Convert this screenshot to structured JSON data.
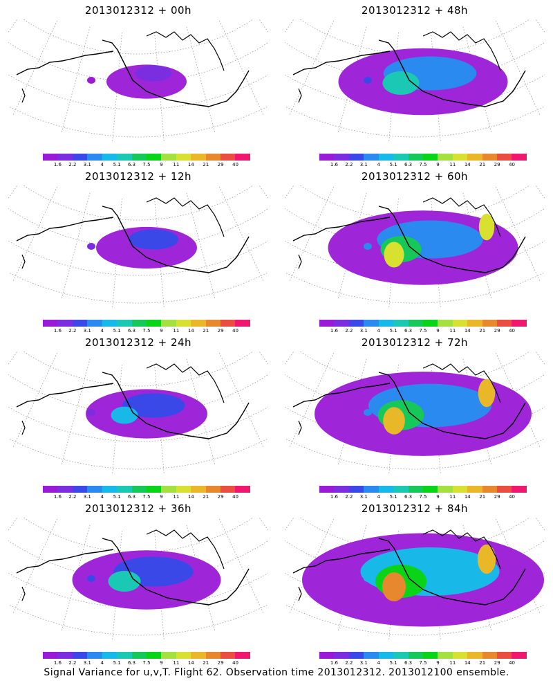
{
  "panels": [
    {
      "title": "2013012312 + 00h",
      "intensity": 0.12
    },
    {
      "title": "2013012312 + 48h",
      "intensity": 0.55
    },
    {
      "title": "2013012312 + 12h",
      "intensity": 0.22
    },
    {
      "title": "2013012312 + 60h",
      "intensity": 0.65
    },
    {
      "title": "2013012312 + 24h",
      "intensity": 0.32
    },
    {
      "title": "2013012312 + 72h",
      "intensity": 0.78
    },
    {
      "title": "2013012312 + 36h",
      "intensity": 0.45
    },
    {
      "title": "2013012312 + 84h",
      "intensity": 0.9
    }
  ],
  "colorbar": {
    "colors": [
      "#9a1ad6",
      "#7a2ee0",
      "#3a48e8",
      "#2a8af0",
      "#18b8e8",
      "#1ac8b4",
      "#16c85a",
      "#0bd418",
      "#a4e040",
      "#d8e030",
      "#e8b828",
      "#e8882e",
      "#e84e42",
      "#f0186e"
    ],
    "labels": [
      "1.6",
      "2.2",
      "3.1",
      "4",
      "5.1",
      "6.3",
      "7.5",
      "9",
      "11",
      "14",
      "21",
      "29",
      "40"
    ]
  },
  "footer": "Signal Variance for u,v,T. Flight 62. Observation time 2013012312. 2013012100 ensemble."
}
